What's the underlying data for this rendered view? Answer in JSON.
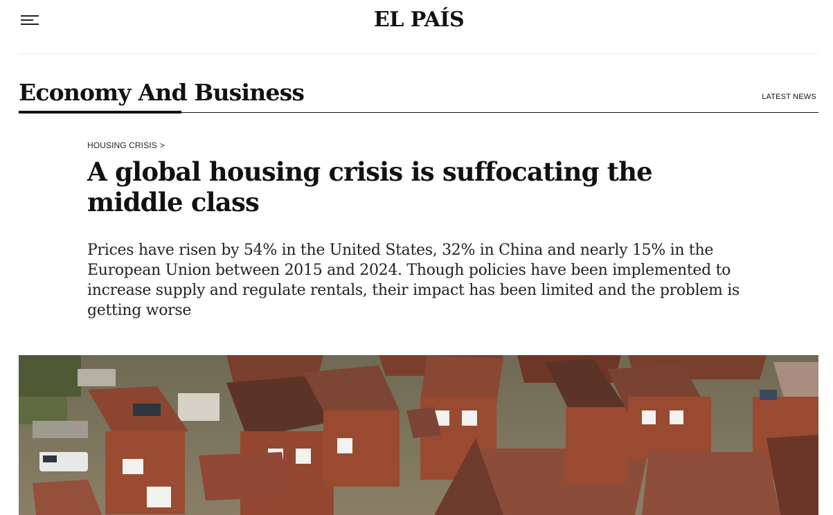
{
  "header": {
    "logo_text": "EL PAÍS",
    "menu_icon": "hamburger-menu-icon"
  },
  "section": {
    "title": "Economy And Business",
    "latest_news_label": "LATEST NEWS"
  },
  "article": {
    "kicker": "HOUSING CRISIS",
    "kicker_chevron": ">",
    "headline": "A global housing crisis is suffocating the middle class",
    "dek": "Prices have risen by 54% in the United States, 32% in China and nearly 15% in the European Union between 2015 and 2024. Though policies have been implemented to increase supply and regulate rentals, their impact has been limited and the problem is getting worse"
  },
  "colors": {
    "text": "#111111",
    "divider": "#ececec",
    "background": "#ffffff"
  }
}
